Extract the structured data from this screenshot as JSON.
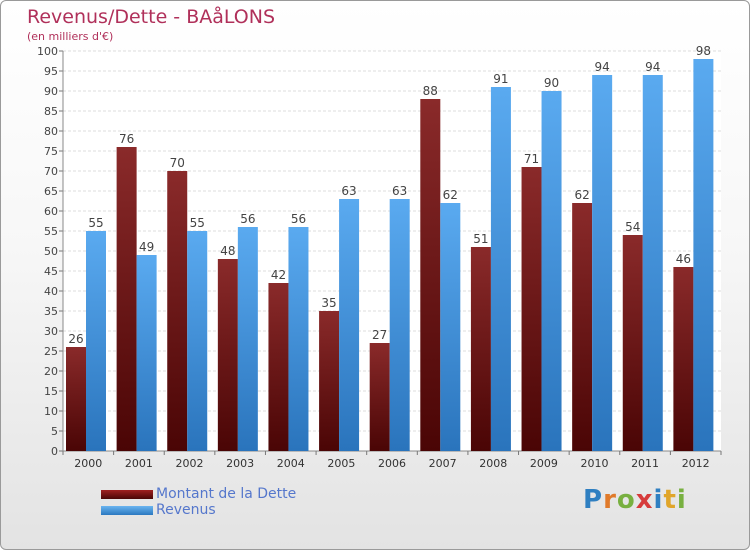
{
  "title": "Revenus/Dette - BAåLONS",
  "subtitle": "(en milliers d'€)",
  "chart_data": {
    "type": "bar",
    "categories": [
      "2000",
      "2001",
      "2002",
      "2003",
      "2004",
      "2005",
      "2006",
      "2007",
      "2008",
      "2009",
      "2010",
      "2011",
      "2012"
    ],
    "series": [
      {
        "name": "Montant de la Dette",
        "color": "#7a1010",
        "values": [
          26,
          76,
          70,
          48,
          42,
          35,
          27,
          88,
          51,
          71,
          62,
          54,
          46
        ]
      },
      {
        "name": "Revenus",
        "color": "#3d8fd8",
        "values": [
          55,
          49,
          55,
          56,
          56,
          63,
          63,
          62,
          91,
          90,
          94,
          94,
          98
        ]
      }
    ],
    "ylim": [
      0,
      100
    ],
    "ytick_step": 5,
    "grid": true,
    "legend_position": "bottom-left"
  },
  "legend": [
    {
      "label": "Montant de la Dette",
      "color": "#6b0d0d"
    },
    {
      "label": "Revenus",
      "color": "#3d8fd8"
    }
  ],
  "logo": {
    "letters": [
      "P",
      "r",
      "o",
      "x",
      "i",
      "t",
      "i"
    ],
    "colors": [
      "#2f7fc1",
      "#e07a2a",
      "#78b040",
      "#d63b3b",
      "#2f7fc1",
      "#e0a52a",
      "#78b040"
    ]
  }
}
